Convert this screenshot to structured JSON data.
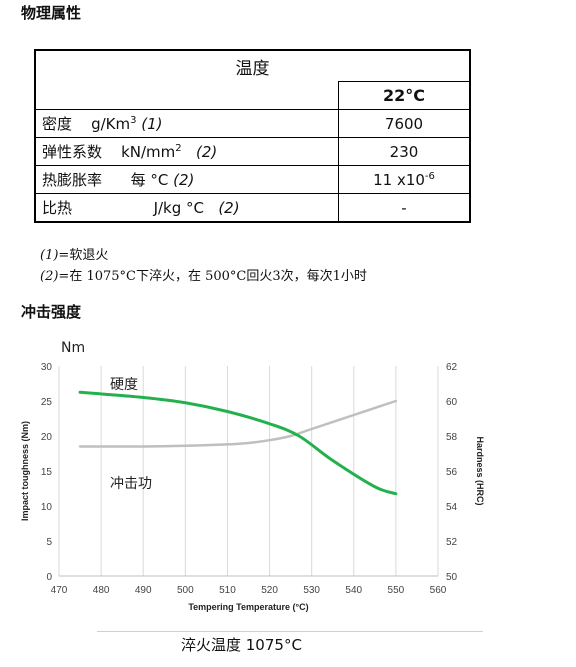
{
  "section1_title": "物理属性",
  "table": {
    "header": "温度",
    "temp": "22°C",
    "rows": [
      {
        "name": "密度",
        "unit": "g/Km",
        "sup": "3",
        "ref": "(1)",
        "value": "7600",
        "vsup": ""
      },
      {
        "name": "弹性系数",
        "unit": "kN/mm",
        "sup": "2",
        "ref": "(2)",
        "value": "230",
        "vsup": ""
      },
      {
        "name": "热膨胀率",
        "unit": "每 °C",
        "sup": "",
        "ref": "(2)",
        "value": "11 x10",
        "vsup": "-6"
      },
      {
        "name": "比热",
        "unit": "J/kg °C",
        "sup": "",
        "ref": "(2)",
        "value": "-",
        "vsup": ""
      }
    ]
  },
  "notes": {
    "n1_ref": "(1)",
    "n1_text": "=软退火",
    "n2_ref": "(2)",
    "n2_text": "=在 1075°C下淬火，在 500°C回火3次，每次1小时"
  },
  "section2_title": "冲击强度",
  "chart_data": {
    "type": "line",
    "title": "",
    "top_left_label": "Nm",
    "xlabel": "Tempering Temperature (°C)",
    "ylabel_left": "Impact toughness (Nm)",
    "ylabel_right": "Hardness (HRC)",
    "xlim": [
      470,
      560
    ],
    "xticks": [
      470,
      480,
      490,
      500,
      510,
      520,
      530,
      540,
      550,
      560
    ],
    "ylim_left": [
      0,
      30
    ],
    "yticks_left": [
      0,
      5,
      10,
      15,
      20,
      25,
      30
    ],
    "ylim_right": [
      50,
      62
    ],
    "yticks_right": [
      50,
      52,
      54,
      56,
      58,
      60,
      62
    ],
    "grid": "vertical",
    "series": [
      {
        "name": "硬度",
        "axis": "right",
        "color": "#22b14c",
        "x": [
          475,
          490,
          500,
          510,
          520,
          527,
          535,
          545,
          550
        ],
        "y": [
          60.5,
          60.2,
          59.9,
          59.4,
          58.7,
          58.0,
          56.6,
          55.1,
          54.7
        ]
      },
      {
        "name": "冲击功",
        "axis": "left",
        "color": "#bfbfbf",
        "x": [
          475,
          490,
          500,
          510,
          515,
          520,
          525,
          530,
          540,
          550
        ],
        "y": [
          18.5,
          18.5,
          18.6,
          18.8,
          19.0,
          19.4,
          20.0,
          21.0,
          23.0,
          25.0
        ]
      }
    ],
    "annotations": [
      "硬度",
      "冲击功"
    ]
  },
  "caption": "淬火温度  1075°C"
}
